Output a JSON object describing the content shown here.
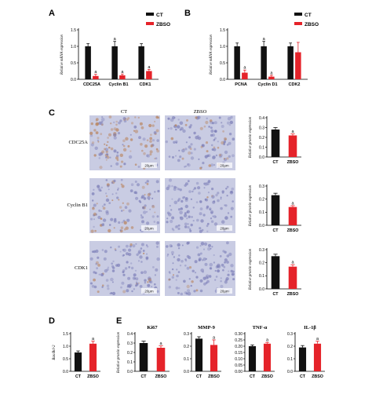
{
  "panel_letters": [
    "A",
    "B",
    "C",
    "D",
    "E"
  ],
  "colors": {
    "ct": "#111111",
    "zbso": "#e5232a",
    "stain_bg": "#c9cce3",
    "stain_brown": "#b9845e",
    "stain_cell": "#7d7fb8"
  },
  "legend": {
    "ct": "CT",
    "zbso": "ZBSO"
  },
  "sig_marker": "a",
  "ihc": {
    "col_headers": [
      "CT",
      "ZBSO"
    ],
    "row_labels": [
      "CDC25A",
      "Cyclin B1",
      "CDK1"
    ],
    "scale_label": "20μm"
  },
  "chart_data": [
    {
      "id": "A",
      "type": "bar",
      "categories": [
        "CDC25A",
        "Cyclin B1",
        "CDK1"
      ],
      "series": [
        {
          "name": "CT",
          "values": [
            1.0,
            1.0,
            1.0
          ],
          "errors": [
            0.08,
            0.15,
            0.08
          ]
        },
        {
          "name": "ZBSO",
          "values": [
            0.1,
            0.12,
            0.25
          ],
          "errors": [
            0.05,
            0.04,
            0.05
          ]
        }
      ],
      "ylabel": "Relative mRNA expression",
      "ylim": [
        0,
        1.5
      ],
      "yticks": [
        0.0,
        0.5,
        1.0,
        1.5
      ],
      "significant": [
        false,
        true,
        true,
        true,
        false,
        true
      ]
    },
    {
      "id": "B",
      "type": "bar",
      "categories": [
        "PCNA",
        "Cyclin D1",
        "CDK2"
      ],
      "series": [
        {
          "name": "CT",
          "values": [
            1.0,
            1.0,
            1.0
          ],
          "errors": [
            0.1,
            0.15,
            0.1
          ]
        },
        {
          "name": "ZBSO",
          "values": [
            0.2,
            0.08,
            0.82
          ],
          "errors": [
            0.08,
            0.04,
            0.3
          ]
        }
      ],
      "ylabel": "Relative mRNA expression",
      "ylim": [
        0,
        1.5
      ],
      "yticks": [
        0.0,
        0.5,
        1.0,
        1.5
      ],
      "significant": [
        false,
        true,
        true,
        true,
        false,
        false
      ]
    },
    {
      "id": "C1",
      "type": "bar",
      "categories": [
        "CT",
        "ZBSO"
      ],
      "values": [
        0.28,
        0.22
      ],
      "errors": [
        0.02,
        0.015
      ],
      "ylabel": "Relative protein expression",
      "ylim": [
        0,
        0.4
      ],
      "yticks": [
        0.0,
        0.1,
        0.2,
        0.3,
        0.4
      ],
      "significant": [
        false,
        true
      ]
    },
    {
      "id": "C2",
      "type": "bar",
      "categories": [
        "CT",
        "ZBSO"
      ],
      "values": [
        0.23,
        0.14
      ],
      "errors": [
        0.015,
        0.01
      ],
      "ylabel": "Relative protein expression",
      "ylim": [
        0,
        0.3
      ],
      "yticks": [
        0.0,
        0.1,
        0.2,
        0.3
      ],
      "significant": [
        false,
        true
      ]
    },
    {
      "id": "C3",
      "type": "bar",
      "categories": [
        "CT",
        "ZBSO"
      ],
      "values": [
        0.25,
        0.17
      ],
      "errors": [
        0.015,
        0.015
      ],
      "ylabel": "Relative protein expression",
      "ylim": [
        0,
        0.3
      ],
      "yticks": [
        0.0,
        0.1,
        0.2,
        0.3
      ],
      "significant": [
        false,
        true
      ]
    },
    {
      "id": "D",
      "type": "bar",
      "categories": [
        "CT",
        "ZBSO"
      ],
      "values": [
        0.75,
        1.1
      ],
      "errors": [
        0.06,
        0.1
      ],
      "ylabel": "Bax/Bcl-2",
      "ylim": [
        0,
        1.5
      ],
      "yticks": [
        0.0,
        0.5,
        1.0,
        1.5
      ],
      "significant": [
        false,
        true
      ]
    },
    {
      "id": "E1",
      "type": "bar",
      "title": "Ki67",
      "categories": [
        "CT",
        "ZBSO"
      ],
      "values": [
        0.3,
        0.25
      ],
      "errors": [
        0.02,
        0.02
      ],
      "ylabel": "Relative protein expression",
      "ylim": [
        0,
        0.4
      ],
      "yticks": [
        0.0,
        0.1,
        0.2,
        0.3,
        0.4
      ],
      "significant": [
        false,
        true
      ]
    },
    {
      "id": "E2",
      "type": "bar",
      "title": "MMP-9",
      "categories": [
        "CT",
        "ZBSO"
      ],
      "values": [
        0.26,
        0.21
      ],
      "errors": [
        0.015,
        0.04
      ],
      "ylabel": "",
      "ylim": [
        0,
        0.3
      ],
      "yticks": [
        0.0,
        0.1,
        0.2,
        0.3
      ],
      "significant": [
        false,
        true
      ]
    },
    {
      "id": "E3",
      "type": "bar",
      "title": "TNF-α",
      "categories": [
        "CT",
        "ZBSO"
      ],
      "values": [
        0.2,
        0.22
      ],
      "errors": [
        0.01,
        0.01
      ],
      "ylabel": "",
      "ylim": [
        0,
        0.3
      ],
      "yticks": [
        0.0,
        0.05,
        0.1,
        0.15,
        0.2,
        0.25,
        0.3
      ],
      "significant": [
        false,
        true
      ]
    },
    {
      "id": "E4",
      "type": "bar",
      "title": "IL-1β",
      "categories": [
        "CT",
        "ZBSO"
      ],
      "values": [
        0.19,
        0.22
      ],
      "errors": [
        0.015,
        0.02
      ],
      "ylabel": "",
      "ylim": [
        0,
        0.3
      ],
      "yticks": [
        0.0,
        0.1,
        0.2,
        0.3
      ],
      "significant": [
        false,
        true
      ]
    }
  ]
}
